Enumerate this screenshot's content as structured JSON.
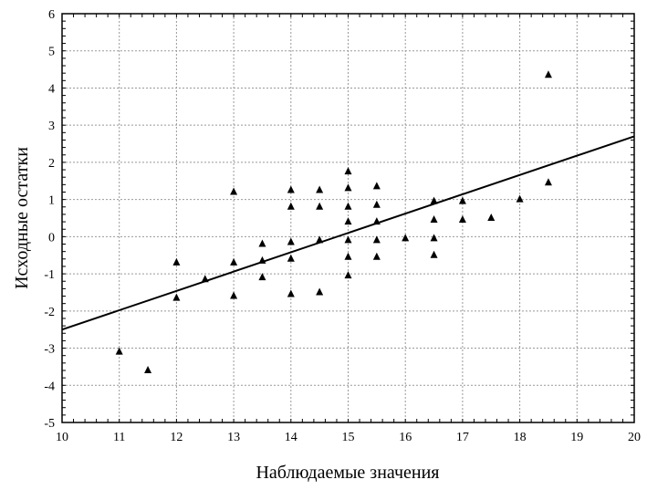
{
  "chart_data": {
    "type": "scatter",
    "title": "",
    "xlabel": "Наблюдаемые значения",
    "ylabel": "Исходные остатки",
    "xlim": [
      10,
      20
    ],
    "ylim": [
      -5,
      6
    ],
    "xticks": [
      10,
      11,
      12,
      13,
      14,
      15,
      16,
      17,
      18,
      19,
      20
    ],
    "yticks": [
      -5,
      -4,
      -3,
      -2,
      -1,
      0,
      1,
      2,
      3,
      4,
      5,
      6
    ],
    "grid": true,
    "marker": "triangle",
    "points": [
      [
        11,
        -3.1
      ],
      [
        11.5,
        -3.6
      ],
      [
        12,
        -0.7
      ],
      [
        12,
        -1.65
      ],
      [
        12.5,
        -1.15
      ],
      [
        13,
        1.2
      ],
      [
        13,
        -0.7
      ],
      [
        13,
        -1.6
      ],
      [
        13.5,
        -0.2
      ],
      [
        13.5,
        -0.65
      ],
      [
        13.5,
        -1.1
      ],
      [
        14,
        1.25
      ],
      [
        14,
        0.8
      ],
      [
        14,
        -0.15
      ],
      [
        14,
        -0.6
      ],
      [
        14,
        -1.55
      ],
      [
        14.5,
        1.25
      ],
      [
        14.5,
        0.8
      ],
      [
        14.5,
        -0.1
      ],
      [
        14.5,
        -1.5
      ],
      [
        15,
        1.75
      ],
      [
        15,
        1.3
      ],
      [
        15,
        0.8
      ],
      [
        15,
        0.4
      ],
      [
        15,
        -0.1
      ],
      [
        15,
        -0.55
      ],
      [
        15,
        -1.05
      ],
      [
        15.5,
        1.35
      ],
      [
        15.5,
        0.85
      ],
      [
        15.5,
        0.4
      ],
      [
        15.5,
        -0.1
      ],
      [
        15.5,
        -0.55
      ],
      [
        16,
        -0.05
      ],
      [
        16.5,
        0.95
      ],
      [
        16.5,
        0.45
      ],
      [
        16.5,
        -0.05
      ],
      [
        16.5,
        -0.5
      ],
      [
        17,
        0.95
      ],
      [
        17,
        0.45
      ],
      [
        17.5,
        0.5
      ],
      [
        18,
        1.0
      ],
      [
        18.5,
        4.35
      ],
      [
        18.5,
        1.45
      ]
    ],
    "fit_line": [
      [
        10,
        -2.5
      ],
      [
        20,
        2.7
      ]
    ]
  }
}
